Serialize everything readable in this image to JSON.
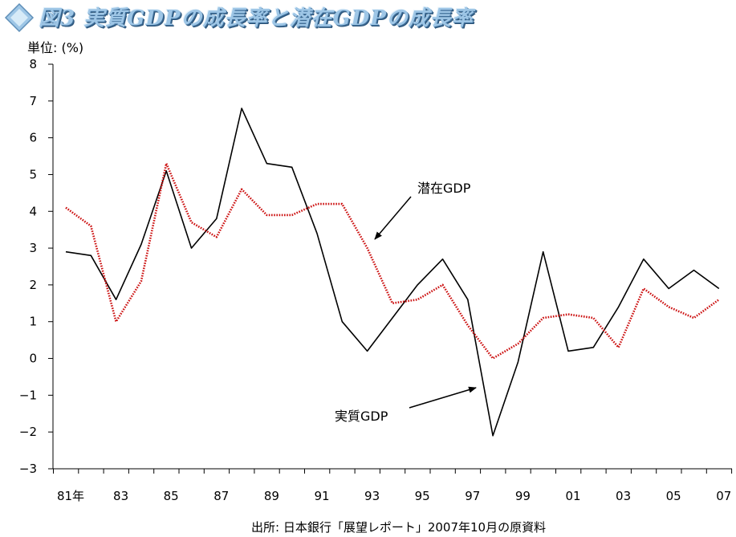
{
  "title": "図3 実質GDPの成長率と潜在GDPの成長率",
  "source": "出所: 日本銀行「展望レポート」2007年10月の原資料",
  "colors": {
    "real": "#000000",
    "potential": "#cc1111",
    "title": "#9ec6e6"
  },
  "chart_data": {
    "type": "line",
    "ylabel": "単位: (%)",
    "ylim": [
      -3,
      8
    ],
    "yticks": [
      "8",
      "7",
      "6",
      "5",
      "4",
      "3",
      "2",
      "1",
      "0",
      "−1",
      "−2",
      "−3"
    ],
    "x": [
      1981,
      1982,
      1983,
      1984,
      1985,
      1986,
      1987,
      1988,
      1989,
      1990,
      1991,
      1992,
      1993,
      1994,
      1995,
      1996,
      1997,
      1998,
      1999,
      2000,
      2001,
      2002,
      2003,
      2004,
      2005,
      2006,
      2007
    ],
    "xtick_labels": [
      "81年",
      "83",
      "85",
      "87",
      "89",
      "91",
      "93",
      "95",
      "97",
      "99",
      "01",
      "03",
      "05",
      "07"
    ],
    "grid": false,
    "legend": "annotations with arrows",
    "series": [
      {
        "name": "実質GDP",
        "key": "real",
        "style": "solid",
        "values": [
          2.9,
          2.8,
          1.6,
          3.1,
          5.1,
          3.0,
          3.8,
          6.8,
          5.3,
          5.2,
          3.4,
          1.0,
          0.2,
          1.1,
          2.0,
          2.7,
          1.6,
          -2.1,
          -0.1,
          2.9,
          0.2,
          0.3,
          1.4,
          2.7,
          1.9,
          2.4,
          1.9
        ]
      },
      {
        "name": "潜在GDP",
        "key": "potential",
        "style": "dotted",
        "values": [
          4.1,
          3.6,
          1.0,
          2.1,
          5.3,
          3.7,
          3.3,
          4.6,
          3.9,
          3.9,
          4.2,
          4.2,
          3.0,
          1.5,
          1.6,
          2.0,
          0.9,
          0.0,
          0.4,
          1.1,
          1.2,
          1.1,
          0.3,
          1.9,
          1.4,
          1.1,
          1.6
        ]
      }
    ]
  }
}
